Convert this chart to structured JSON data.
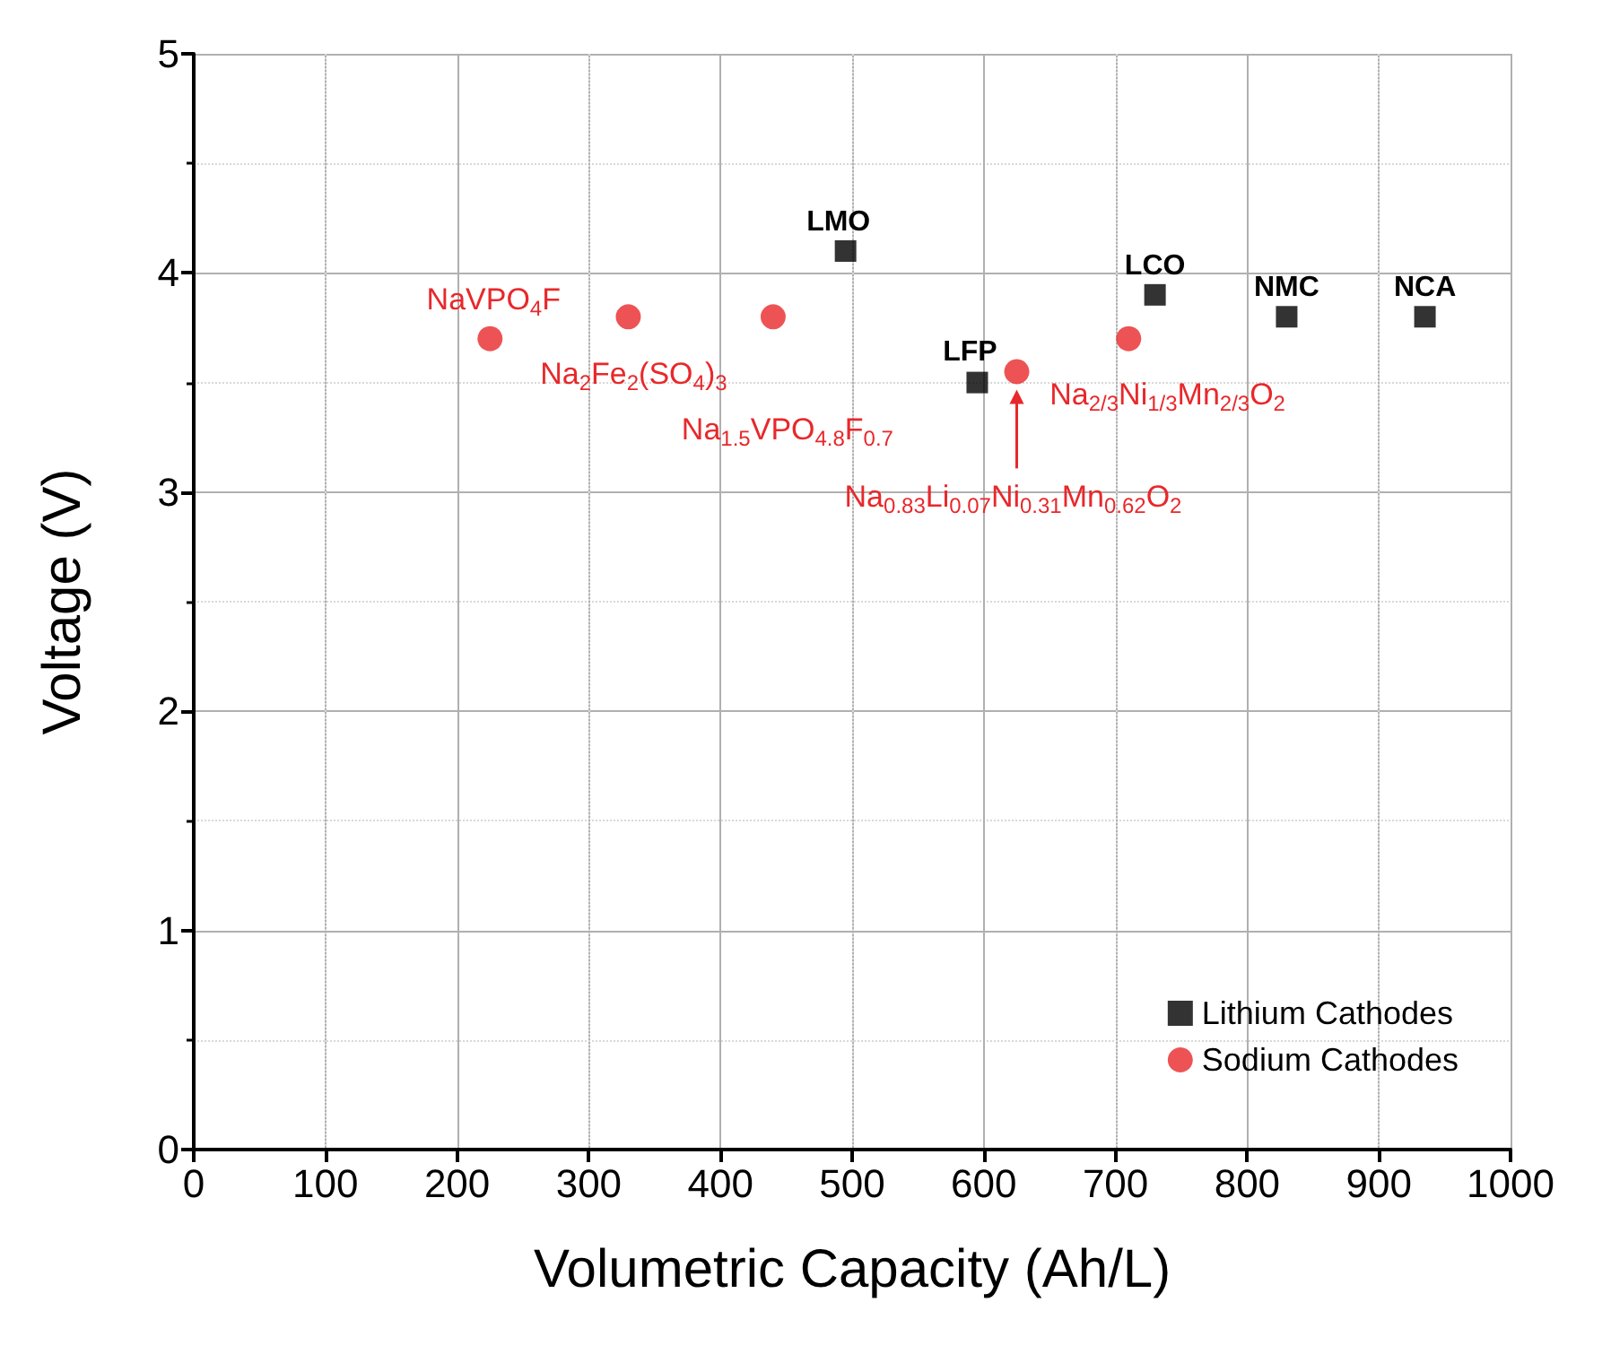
{
  "chart_data": {
    "type": "scatter",
    "xlabel": "Volumetric Capacity (Ah/L)",
    "ylabel": "Voltage (V)",
    "xlim": [
      0,
      1000
    ],
    "xticks": [
      0,
      100,
      200,
      300,
      400,
      500,
      600,
      700,
      800,
      900,
      1000
    ],
    "ylim": [
      0,
      5
    ],
    "yticks": [
      0,
      1,
      2,
      3,
      4,
      5
    ],
    "grid": true,
    "legend": "bottom right",
    "series": [
      {
        "name": "Lithium Cathodes",
        "color": "#000000",
        "marker": "square",
        "x": [
          495,
          595,
          730,
          830,
          935
        ],
        "values": [
          4.1,
          3.5,
          3.9,
          3.8,
          3.8
        ]
      },
      {
        "name": "Sodium Cathodes",
        "color": "#e8282b",
        "marker": "circle",
        "x": [
          225,
          330,
          440,
          625,
          710
        ],
        "values": [
          3.7,
          3.8,
          3.8,
          3.55,
          3.7
        ]
      }
    ],
    "annotations": [
      {
        "text": "LMO",
        "x": 495,
        "y": 4.1
      },
      {
        "text": "LFP",
        "x": 595,
        "y": 3.5
      },
      {
        "text": "LCO",
        "x": 730,
        "y": 3.9
      },
      {
        "text": "NMC",
        "x": 830,
        "y": 3.8
      },
      {
        "text": "NCA",
        "x": 935,
        "y": 3.8
      },
      {
        "text": "NaVPO$_{4}$F",
        "x": 225,
        "y": 3.7
      },
      {
        "text": "Na$_{2}$Fe$_{2}$(SO$_{4}$)$_{3}$",
        "x": 330,
        "y": 3.8
      },
      "Na$_{1.5}$VPO$_{4.8}$F$_{0.7}$",
      "Na$_{0.83}$Li$_{0.07}$Ni$_{0.31}$Mn$_{0.62}$O$_{2}$",
      {
        "text": "Na$_{2/3}$Ni$_{1/3}$Mn$_{2/3}$O$_{2}$",
        "x": 710,
        "y": 3.7
      }
    ]
  }
}
